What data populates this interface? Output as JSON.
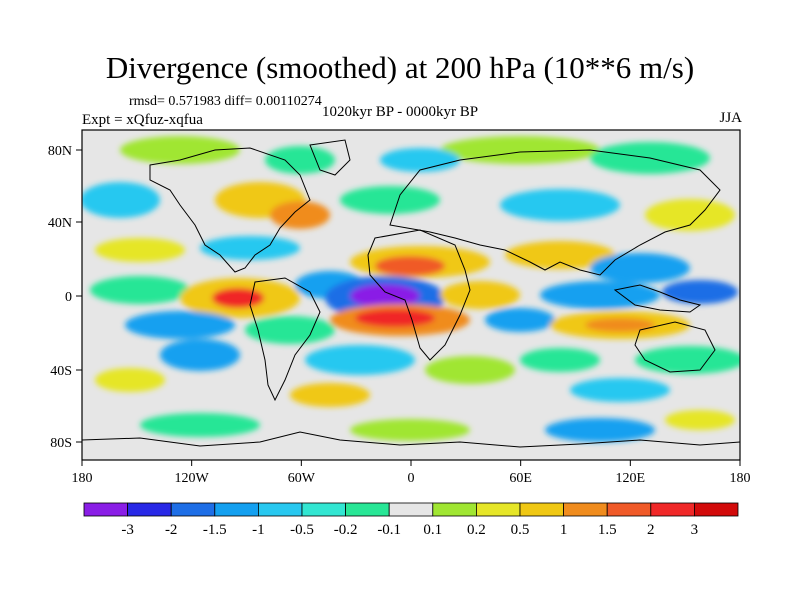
{
  "header": {
    "title": "Divergence (smoothed) at 200 hPa (10**6 m/s)",
    "stats": "rmsd= 0.571983 diff= 0.00110274",
    "experiment": "Expt = xQfuz-xqfua",
    "period": "1020kyr BP - 0000kyr BP",
    "season": "JJA"
  },
  "map": {
    "x_tick_labels": [
      "180",
      "120W",
      "60W",
      "0",
      "60E",
      "120E",
      "180"
    ],
    "y_tick_labels": [
      "80N",
      "40N",
      "0",
      "40S",
      "80S"
    ],
    "background_color": "#e6e6e6"
  },
  "colorbar": {
    "labels": [
      "-3",
      "-2",
      "-1.5",
      "-1",
      "-0.5",
      "-0.2",
      "-0.1",
      "0.1",
      "0.2",
      "0.5",
      "1",
      "1.5",
      "2",
      "3"
    ],
    "colors": [
      "#8a1ee6",
      "#2828e6",
      "#1e6ee6",
      "#14a0f0",
      "#28c8f0",
      "#32e6d2",
      "#28e696",
      "#e6e6e6",
      "#a0e632",
      "#e6e628",
      "#f0c814",
      "#f08c1e",
      "#f05a28",
      "#f02828",
      "#d20a0a"
    ]
  }
}
